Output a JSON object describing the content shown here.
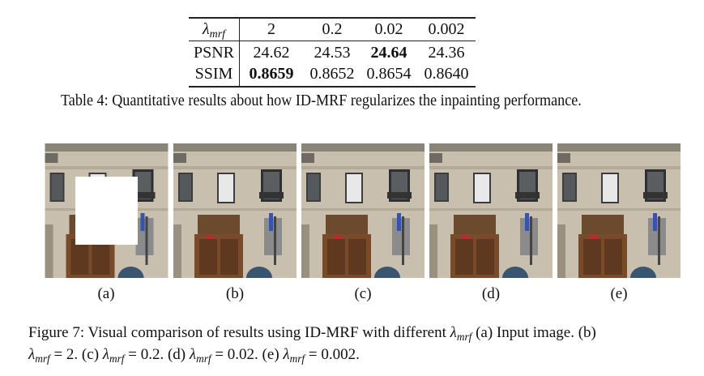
{
  "table": {
    "header": [
      {
        "symbol": "λ",
        "sub": "mrf"
      },
      "2",
      "0.2",
      "0.02",
      "0.002"
    ],
    "rows": [
      {
        "label": "PSNR",
        "cells": [
          "24.62",
          "24.53",
          "24.64",
          "24.36"
        ],
        "bold": 2
      },
      {
        "label": "SSIM",
        "cells": [
          "0.8659",
          "0.8652",
          "0.8654",
          "0.8640"
        ],
        "bold": 0
      }
    ],
    "caption": "Table 4: Quantitative results about how ID-MRF regularizes the inpainting performance."
  },
  "figure": {
    "panels": [
      "(a)",
      "(b)",
      "(c)",
      "(d)",
      "(e)"
    ],
    "caption_lines": [
      [
        "Figure 7: Visual comparison of results using ID-MRF with different ",
        {
          "symbol": "λ",
          "sub": "mrf"
        },
        " (a) Input image. (b)"
      ],
      [
        {
          "symbol": "λ",
          "sub": "mrf"
        },
        " = 2. (c) ",
        {
          "symbol": "λ",
          "sub": "mrf"
        },
        " = 0.2. (d) ",
        {
          "symbol": "λ",
          "sub": "mrf"
        },
        " = 0.02. (e) ",
        {
          "symbol": "λ",
          "sub": "mrf"
        },
        " = 0.002."
      ]
    ]
  }
}
